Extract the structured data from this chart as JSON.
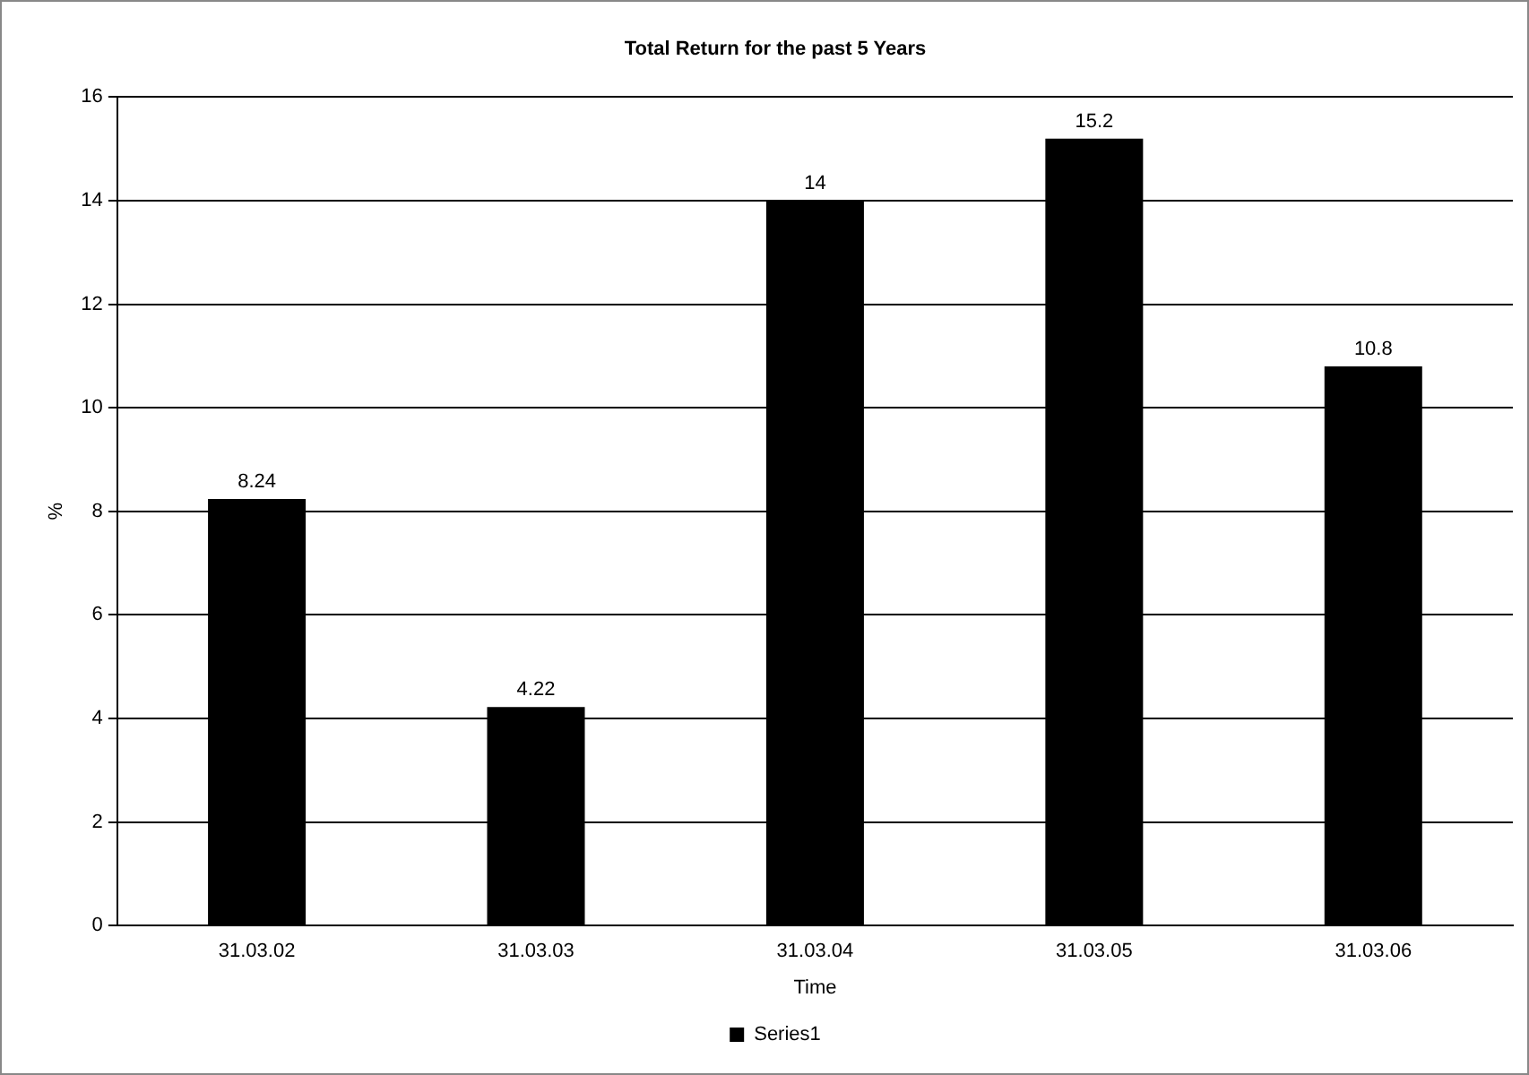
{
  "chart_data": {
    "type": "bar",
    "title": "Total Return for the past 5 Years",
    "xlabel": "Time",
    "ylabel": "%",
    "categories": [
      "31.03.02",
      "31.03.03",
      "31.03.04",
      "31.03.05",
      "31.03.06"
    ],
    "series": [
      {
        "name": "Series1",
        "color": "#000000",
        "values": [
          8.24,
          4.22,
          14,
          15.2,
          10.8
        ]
      }
    ],
    "ylim": [
      0,
      16
    ],
    "yticks": [
      0,
      2,
      4,
      6,
      8,
      10,
      12,
      14,
      16
    ],
    "grid": "y",
    "legend": "bottom",
    "data_labels": true
  }
}
